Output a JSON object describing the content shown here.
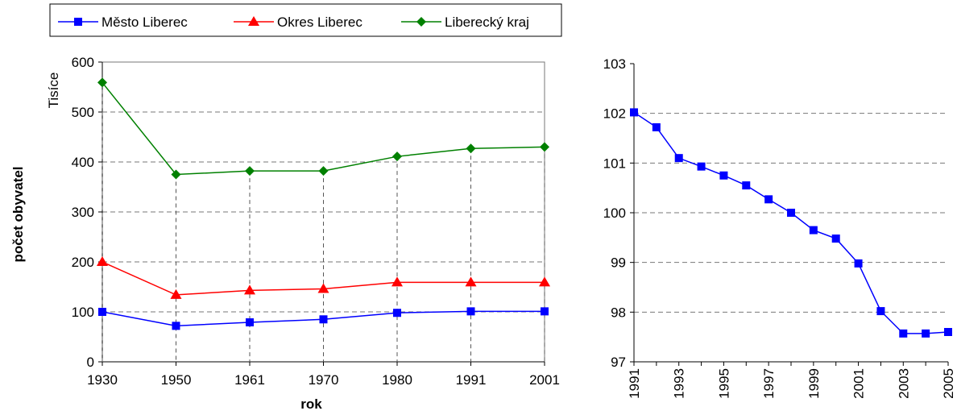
{
  "chart_data": [
    {
      "type": "line",
      "ylabel": "počet obyvatel",
      "yunit": "Tisíce",
      "xlabel": "rok",
      "categories": [
        1930,
        1950,
        1961,
        1970,
        1980,
        1991,
        2001
      ],
      "series": [
        {
          "name": "Město Liberec",
          "color": "#0000ff",
          "marker": "square",
          "values": [
            100,
            72,
            79,
            85,
            98,
            101,
            101
          ]
        },
        {
          "name": "Okres Liberec",
          "color": "#ff0000",
          "marker": "triangle",
          "values": [
            200,
            134,
            143,
            146,
            159,
            159,
            159
          ]
        },
        {
          "name": "Liberecký kraj",
          "color": "#008000",
          "marker": "diamond",
          "values": [
            559,
            375,
            382,
            382,
            411,
            427,
            430
          ]
        }
      ],
      "ylim": [
        0,
        600
      ],
      "yticks": [
        0,
        100,
        200,
        300,
        400,
        500,
        600
      ],
      "grid": true,
      "drop_lines": true,
      "border": true,
      "legend": "top"
    },
    {
      "type": "line",
      "categories": [
        1991,
        null,
        1993,
        null,
        1995,
        null,
        1997,
        null,
        1999,
        null,
        2001,
        null,
        2003,
        null,
        2005
      ],
      "series": [
        {
          "color": "#0000ff",
          "marker": "square",
          "values": [
            102.02,
            101.72,
            101.1,
            100.93,
            100.75,
            100.55,
            100.27,
            100.0,
            99.65,
            99.48,
            98.98,
            98.02,
            97.57,
            97.57,
            97.6
          ]
        }
      ],
      "ylim": [
        97,
        103
      ],
      "yticks": [
        97,
        98,
        99,
        100,
        101,
        102,
        103
      ],
      "grid": true,
      "drop_lines": false,
      "border": false,
      "rotate_x_labels": true
    }
  ]
}
